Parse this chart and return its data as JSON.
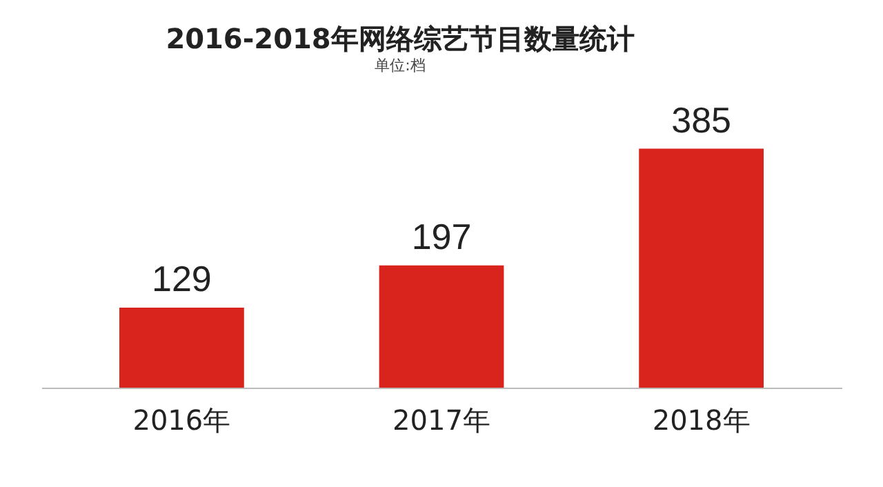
{
  "chart_data": {
    "type": "bar",
    "title": "2016-2018年网络综艺节目数量统计",
    "subtitle": "单位:档",
    "categories": [
      "2016年",
      "2017年",
      "2018年"
    ],
    "values": [
      129,
      197,
      385
    ],
    "color": "#d8241c",
    "data_labels": true,
    "grid": false
  }
}
